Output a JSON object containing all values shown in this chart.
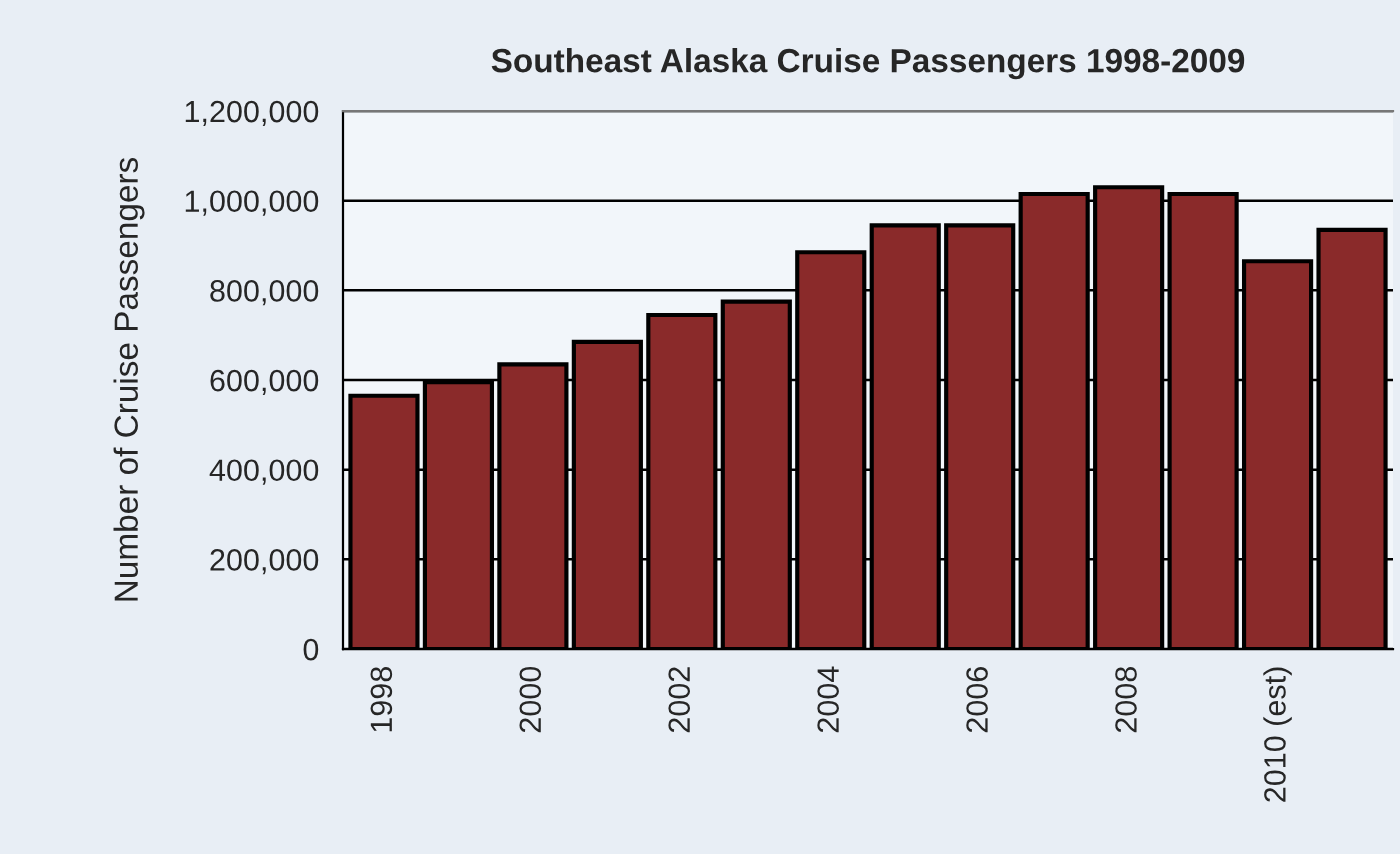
{
  "chart_data": {
    "type": "bar",
    "title": "Southeast Alaska Cruise Passengers 1998-2009",
    "ylabel": "Number of Cruise Passengers",
    "categories": [
      "1998",
      null,
      "2000",
      null,
      "2002",
      null,
      "2004",
      null,
      "2006",
      null,
      "2008",
      null,
      "2010 (est)",
      null
    ],
    "values": [
      565000,
      595000,
      635000,
      685000,
      745000,
      775000,
      885000,
      945000,
      945000,
      1015000,
      1030000,
      1015000,
      865000,
      935000
    ],
    "color": "#8a2a2a",
    "ylim": [
      0,
      1200000
    ],
    "yticks": [
      {
        "value": 0,
        "label": "0"
      },
      {
        "value": 200000,
        "label": "200,000"
      },
      {
        "value": 400000,
        "label": "400,000"
      },
      {
        "value": 600000,
        "label": "600,000"
      },
      {
        "value": 800000,
        "label": "800,000"
      },
      {
        "value": 1000000,
        "label": "1,000,000"
      },
      {
        "value": 1200000,
        "label": "1,200,000"
      }
    ],
    "grid": "y"
  }
}
